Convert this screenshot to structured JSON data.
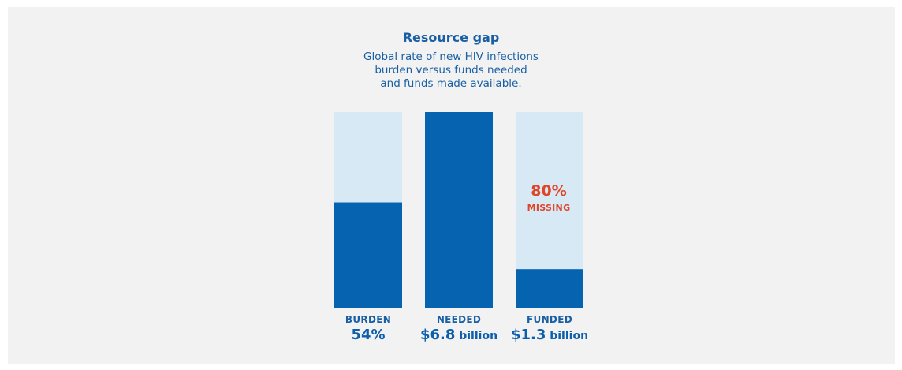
{
  "title": "Resource gap",
  "subtitle_lines": [
    "Global rate of new HIV infections",
    "burden versus funds needed",
    "and funds made available."
  ],
  "colors": {
    "filled": "#0563b0",
    "track": "#d6e9f5",
    "text": "#1a5fa3",
    "accent": "#e0452a"
  },
  "chart_data": {
    "type": "bar",
    "title": "Resource gap",
    "categories": [
      "BURDEN",
      "NEEDED",
      "FUNDED"
    ],
    "values_pct": [
      54,
      100,
      20
    ],
    "value_labels": [
      {
        "number": "54%",
        "unit": ""
      },
      {
        "number": "$6.8",
        "unit": " billion"
      },
      {
        "number": "$1.3",
        "unit": " billion"
      }
    ],
    "annotation": {
      "text": "80%",
      "subtext": "MISSING",
      "category": "FUNDED"
    },
    "ylim": [
      0,
      100
    ]
  }
}
